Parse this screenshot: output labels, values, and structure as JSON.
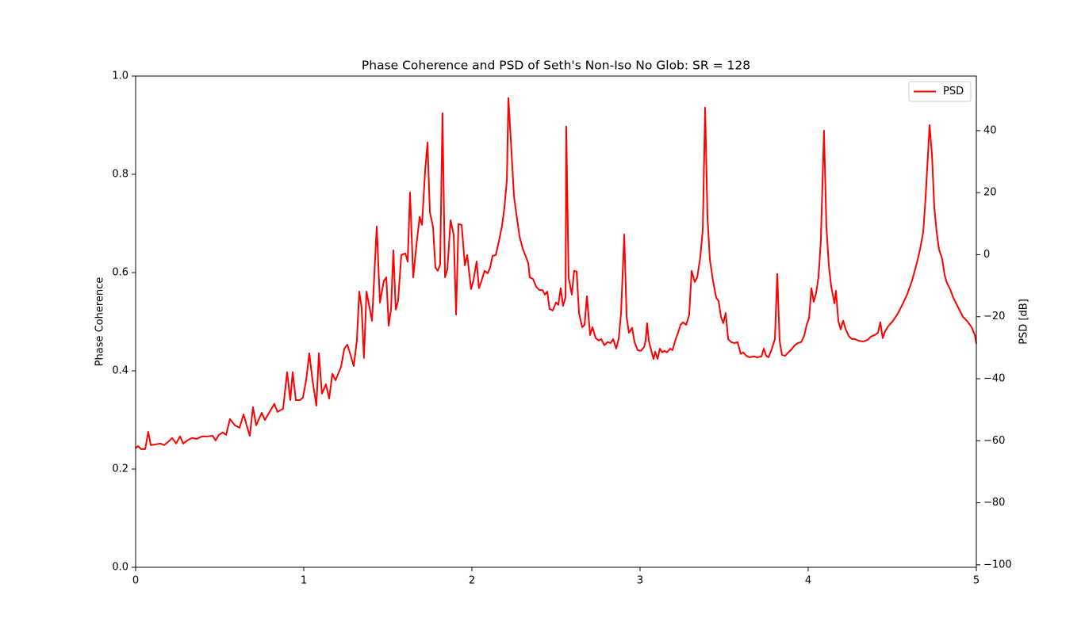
{
  "chart_data": {
    "type": "line",
    "title": "Phase Coherence and PSD of Seth's Non-Iso No Glob: SR = 128",
    "ylabel": "Phase Coherence",
    "ylabel_color": "#800080",
    "y2label": "PSD [dB]",
    "y2label_color": "#ff0000",
    "xlim": [
      0,
      5
    ],
    "xticks": [
      0,
      1,
      2,
      3,
      4,
      5
    ],
    "ylim": [
      0,
      1
    ],
    "yticks": [
      {
        "value": 0,
        "label": "0.0"
      },
      0.2,
      0.4,
      0.6,
      0.8,
      {
        "value": 1,
        "label": "1.0"
      }
    ],
    "y2lim": [
      -100.8,
      57.6
    ],
    "y2ticks": [
      {
        "value": -100,
        "label": "−100"
      },
      {
        "value": -80,
        "label": "−80"
      },
      {
        "value": -60,
        "label": "−60"
      },
      {
        "value": -40,
        "label": "−40"
      },
      {
        "value": -20,
        "label": "−20"
      },
      0,
      20,
      40
    ],
    "legend": "upper right",
    "x": [
      0,
      0.014,
      0.033,
      0.057,
      0.075,
      0.09,
      0.118,
      0.146,
      0.17,
      0.193,
      0.217,
      0.241,
      0.264,
      0.283,
      0.307,
      0.335,
      0.363,
      0.396,
      0.429,
      0.458,
      0.476,
      0.495,
      0.519,
      0.538,
      0.561,
      0.59,
      0.618,
      0.642,
      0.66,
      0.679,
      0.698,
      0.717,
      0.75,
      0.769,
      0.797,
      0.825,
      0.844,
      0.877,
      0.901,
      0.92,
      0.934,
      0.953,
      0.976,
      0.995,
      1.014,
      1.033,
      1.052,
      1.075,
      1.09,
      1.108,
      1.132,
      1.151,
      1.17,
      1.189,
      1.222,
      1.241,
      1.259,
      1.278,
      1.297,
      1.316,
      1.33,
      1.344,
      1.358,
      1.373,
      1.406,
      1.434,
      1.453,
      1.476,
      1.491,
      1.505,
      1.519,
      1.533,
      1.547,
      1.561,
      1.58,
      1.604,
      1.618,
      1.632,
      1.651,
      1.67,
      1.689,
      1.703,
      1.722,
      1.736,
      1.75,
      1.769,
      1.783,
      1.797,
      1.811,
      1.825,
      1.84,
      1.854,
      1.873,
      1.892,
      1.906,
      1.92,
      1.939,
      1.958,
      1.972,
      1.995,
      2.009,
      2.028,
      2.042,
      2.057,
      2.075,
      2.094,
      2.108,
      2.123,
      2.142,
      2.16,
      2.179,
      2.193,
      2.208,
      2.217,
      2.231,
      2.25,
      2.264,
      2.283,
      2.302,
      2.321,
      2.335,
      2.344,
      2.363,
      2.382,
      2.401,
      2.42,
      2.434,
      2.448,
      2.462,
      2.481,
      2.5,
      2.514,
      2.528,
      2.542,
      2.557,
      2.561,
      2.575,
      2.594,
      2.608,
      2.623,
      2.637,
      2.656,
      2.67,
      2.684,
      2.703,
      2.717,
      2.736,
      2.755,
      2.769,
      2.788,
      2.807,
      2.825,
      2.84,
      2.858,
      2.873,
      2.887,
      2.906,
      2.92,
      2.934,
      2.953,
      2.967,
      2.986,
      3.005,
      3.024,
      3.033,
      3.042,
      3.052,
      3.066,
      3.08,
      3.09,
      3.104,
      3.118,
      3.132,
      3.146,
      3.16,
      3.179,
      3.193,
      3.212,
      3.226,
      3.241,
      3.255,
      3.274,
      3.292,
      3.307,
      3.325,
      3.34,
      3.358,
      3.373,
      3.387,
      3.401,
      3.415,
      3.434,
      3.453,
      3.467,
      3.481,
      3.495,
      3.509,
      3.524,
      3.542,
      3.561,
      3.58,
      3.599,
      3.613,
      3.632,
      3.651,
      3.675,
      3.698,
      3.722,
      3.736,
      3.75,
      3.764,
      3.783,
      3.802,
      3.816,
      3.83,
      3.844,
      3.863,
      3.882,
      3.901,
      3.92,
      3.939,
      3.958,
      3.976,
      3.991,
      4.005,
      4.019,
      4.033,
      4.047,
      4.061,
      4.075,
      4.094,
      4.108,
      4.123,
      4.137,
      4.156,
      4.165,
      4.179,
      4.193,
      4.208,
      4.222,
      4.241,
      4.259,
      4.278,
      4.297,
      4.325,
      4.354,
      4.373,
      4.396,
      4.415,
      4.429,
      4.443,
      4.458,
      4.476,
      4.505,
      4.533,
      4.561,
      4.59,
      4.618,
      4.646,
      4.665,
      4.684,
      4.698,
      4.722,
      4.736,
      4.75,
      4.764,
      4.778,
      4.797,
      4.811,
      4.825,
      4.844,
      4.863,
      4.892,
      4.92,
      4.948,
      4.972,
      4.991,
      5
    ],
    "series": [
      {
        "name": "PSD",
        "color": "#ff0000",
        "axis": "y2",
        "values": [
          -62.4,
          -61.7,
          -62.7,
          -62.7,
          -57.1,
          -61.4,
          -61.2,
          -60.9,
          -61.4,
          -60.4,
          -59.1,
          -60.9,
          -58.6,
          -60.9,
          -59.9,
          -59.1,
          -59.4,
          -58.6,
          -58.6,
          -58.4,
          -59.9,
          -58.1,
          -57.3,
          -58.1,
          -53.0,
          -55.0,
          -55.8,
          -51.5,
          -55.0,
          -58.4,
          -49.2,
          -55.0,
          -51.0,
          -53.3,
          -50.7,
          -48.1,
          -50.7,
          -49.7,
          -37.9,
          -46.9,
          -37.9,
          -46.9,
          -46.9,
          -46.1,
          -40.5,
          -31.8,
          -40.5,
          -48.7,
          -31.8,
          -44.8,
          -41.8,
          -46.4,
          -38.4,
          -40.5,
          -36.1,
          -30.3,
          -29.0,
          -32.3,
          -35.9,
          -27.7,
          -11.9,
          -17.0,
          -33.3,
          -11.9,
          -21.3,
          9.1,
          -15.4,
          -8.5,
          -7.3,
          -22.9,
          -17.5,
          1.4,
          -17.7,
          -14.9,
          -0.1,
          0.4,
          -2.2,
          20.1,
          -7.3,
          3.0,
          12.2,
          9.6,
          27.2,
          36.2,
          13.7,
          8.8,
          -4.2,
          -5.2,
          -3.2,
          45.6,
          -7.3,
          -4.7,
          11.1,
          6.3,
          -19.3,
          9.9,
          9.6,
          -3.4,
          -0.1,
          -11.1,
          -8.3,
          -2.2,
          -10.8,
          -8.5,
          -5.2,
          -6.0,
          -4.2,
          -0.4,
          -0.1,
          4.2,
          9.3,
          15.0,
          24.2,
          50.5,
          37.4,
          19.0,
          13.2,
          6.0,
          1.9,
          -0.6,
          -2.7,
          -7.3,
          -7.8,
          -10.3,
          -11.4,
          -11.4,
          -12.9,
          -11.9,
          -17.5,
          -18.0,
          -15.4,
          -16.2,
          -10.8,
          -16.5,
          -13.7,
          41.3,
          -7.3,
          -12.9,
          -5.2,
          -5.5,
          -18.8,
          -23.4,
          -22.6,
          -13.4,
          -25.9,
          -23.4,
          -26.9,
          -27.7,
          -27.2,
          -29.2,
          -28.2,
          -28.5,
          -27.2,
          -30.3,
          -27.2,
          -18.8,
          6.5,
          -20.0,
          -25.2,
          -23.6,
          -28.2,
          -30.8,
          -31.0,
          -29.8,
          -27.7,
          -22.1,
          -27.7,
          -30.8,
          -33.6,
          -31.3,
          -33.6,
          -30.3,
          -31.5,
          -31.0,
          -31.5,
          -30.3,
          -30.8,
          -27.2,
          -25.2,
          -22.6,
          -21.8,
          -22.6,
          -19.5,
          -5.2,
          -8.8,
          -7.3,
          -0.9,
          8.1,
          47.4,
          11.9,
          -1.4,
          -8.5,
          -13.9,
          -14.9,
          -20.0,
          -22.1,
          -18.8,
          -27.2,
          -28.2,
          -28.5,
          -28.2,
          -32.0,
          -31.5,
          -32.6,
          -33.1,
          -32.8,
          -33.1,
          -32.8,
          -30.3,
          -32.6,
          -33.1,
          -30.5,
          -27.2,
          -6.2,
          -27.7,
          -32.3,
          -32.6,
          -31.5,
          -30.5,
          -29.2,
          -28.5,
          -28.2,
          -26.2,
          -22.6,
          -20.5,
          -10.8,
          -15.2,
          -12.4,
          -7.3,
          4.2,
          40.0,
          9.3,
          -3.7,
          -10.3,
          -15.7,
          -11.6,
          -21.3,
          -24.1,
          -21.3,
          -23.9,
          -26.2,
          -27.2,
          -27.2,
          -27.7,
          -28.0,
          -27.5,
          -26.4,
          -25.9,
          -25.2,
          -21.8,
          -26.9,
          -24.6,
          -23.1,
          -21.3,
          -19.0,
          -16.0,
          -12.6,
          -8.3,
          -2.7,
          1.7,
          7.3,
          18.3,
          41.8,
          32.3,
          15.2,
          7.3,
          1.7,
          -1.4,
          -6.5,
          -9.1,
          -11.1,
          -13.9,
          -17.0,
          -20.0,
          -21.6,
          -23.4,
          -25.9,
          -28.7
        ]
      }
    ]
  }
}
